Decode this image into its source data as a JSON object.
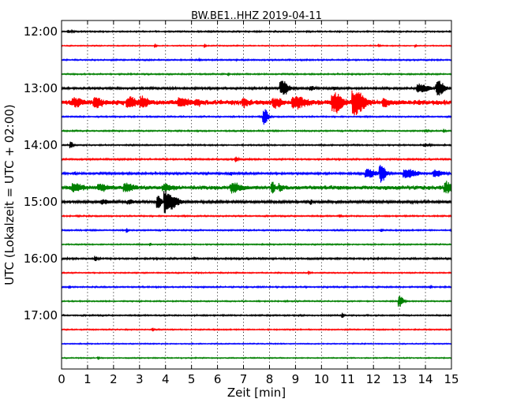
{
  "chart_data": {
    "type": "line",
    "title": "BW.BE1..HHZ 2019-04-11",
    "xlabel": "Zeit  [min]",
    "ylabel": "UTC (Lokalzeit = UTC + 02:00)",
    "xlim": [
      0,
      15
    ],
    "x_ticks": [
      "0",
      "1",
      "2",
      "3",
      "4",
      "5",
      "6",
      "7",
      "8",
      "9",
      "10",
      "11",
      "12",
      "13",
      "14",
      "15"
    ],
    "y_ticks": [
      "12:00",
      "13:00",
      "14:00",
      "15:00",
      "16:00",
      "17:00"
    ],
    "grid": "vertical dotted",
    "series_colors": [
      "#000000",
      "#ff0000",
      "#0000ff",
      "#008000"
    ],
    "traces": [
      {
        "start": "12:00",
        "color": "#000000",
        "noise": 0.8,
        "events": [
          [
            0.3,
            1.2,
            0.15
          ]
        ]
      },
      {
        "start": "12:15",
        "color": "#ff0000",
        "noise": 0.6,
        "events": [
          [
            3.6,
            2.5,
            0.05
          ],
          [
            5.5,
            2.5,
            0.05
          ],
          [
            12.2,
            2,
            0.05
          ],
          [
            13.6,
            2,
            0.05
          ]
        ]
      },
      {
        "start": "12:30",
        "color": "#0000ff",
        "noise": 0.8,
        "events": [
          [
            5.3,
            1.5,
            0.05
          ]
        ]
      },
      {
        "start": "12:45",
        "color": "#008000",
        "noise": 0.8,
        "events": [
          [
            6.4,
            1.3,
            0.05
          ]
        ]
      },
      {
        "start": "13:00",
        "color": "#000000",
        "noise": 1.2,
        "events": [
          [
            8.5,
            9,
            0.25
          ],
          [
            9.6,
            2.5,
            0.15
          ],
          [
            10.5,
            2,
            0.1
          ],
          [
            13.8,
            5,
            0.35
          ],
          [
            14.5,
            9,
            0.25
          ]
        ]
      },
      {
        "start": "13:15",
        "color": "#ff0000",
        "noise": 3,
        "events": [
          [
            0.5,
            4,
            0.3
          ],
          [
            1.3,
            6,
            0.25
          ],
          [
            2.6,
            5,
            0.3
          ],
          [
            3.1,
            6,
            0.25
          ],
          [
            4.6,
            4,
            0.3
          ],
          [
            5.2,
            3,
            0.2
          ],
          [
            7.0,
            4,
            0.2
          ],
          [
            8.2,
            5,
            0.25
          ],
          [
            9.0,
            6,
            0.4
          ],
          [
            10.5,
            12,
            0.3
          ],
          [
            11.3,
            14,
            0.35
          ],
          [
            12.4,
            4,
            0.2
          ]
        ]
      },
      {
        "start": "13:30",
        "color": "#0000ff",
        "noise": 0.8,
        "events": [
          [
            7.8,
            10,
            0.15
          ]
        ]
      },
      {
        "start": "13:45",
        "color": "#008000",
        "noise": 0.8,
        "events": [
          [
            14.0,
            1.5,
            0.1
          ],
          [
            14.7,
            2.5,
            0.05
          ]
        ]
      },
      {
        "start": "14:00",
        "color": "#000000",
        "noise": 0.8,
        "events": [
          [
            0.35,
            4,
            0.1
          ],
          [
            14.0,
            1.5,
            0.2
          ]
        ]
      },
      {
        "start": "14:15",
        "color": "#ff0000",
        "noise": 0.9,
        "events": [
          [
            6.7,
            3,
            0.1
          ]
        ]
      },
      {
        "start": "14:30",
        "color": "#0000ff",
        "noise": 1.2,
        "events": [
          [
            0.5,
            2,
            0.05
          ],
          [
            6.5,
            1.8,
            0.1
          ],
          [
            11.8,
            5,
            0.3
          ],
          [
            12.3,
            10,
            0.2
          ],
          [
            13.3,
            5,
            0.4
          ],
          [
            14.4,
            4,
            0.3
          ]
        ]
      },
      {
        "start": "14:45",
        "color": "#008000",
        "noise": 2.5,
        "events": [
          [
            0.5,
            4,
            0.3
          ],
          [
            1.5,
            3,
            0.3
          ],
          [
            2.5,
            4,
            0.3
          ],
          [
            4.0,
            3,
            0.3
          ],
          [
            6.6,
            5,
            0.3
          ],
          [
            8.1,
            7,
            0.1
          ],
          [
            8.4,
            4,
            0.1
          ],
          [
            14.8,
            6,
            0.25
          ]
        ]
      },
      {
        "start": "15:00",
        "color": "#000000",
        "noise": 1.5,
        "events": [
          [
            1.6,
            2.5,
            0.25
          ],
          [
            2.6,
            2,
            0.2
          ],
          [
            3.7,
            8,
            0.15
          ],
          [
            4.0,
            14,
            0.2
          ],
          [
            4.3,
            6,
            0.25
          ],
          [
            9.6,
            3,
            0.05
          ]
        ]
      },
      {
        "start": "15:15",
        "color": "#ff0000",
        "noise": 0.8,
        "events": [
          [
            10.7,
            2.5,
            0.05
          ]
        ]
      },
      {
        "start": "15:30",
        "color": "#0000ff",
        "noise": 0.8,
        "events": [
          [
            2.5,
            3,
            0.05
          ],
          [
            12.3,
            2,
            0.05
          ]
        ]
      },
      {
        "start": "15:45",
        "color": "#008000",
        "noise": 0.7,
        "events": [
          [
            3.4,
            1.5,
            0.05
          ]
        ]
      },
      {
        "start": "16:00",
        "color": "#000000",
        "noise": 1.0,
        "events": [
          [
            1.3,
            3,
            0.08
          ],
          [
            5.1,
            1.5,
            0.05
          ]
        ]
      },
      {
        "start": "16:15",
        "color": "#ff0000",
        "noise": 0.7,
        "events": [
          [
            9.5,
            2,
            0.05
          ]
        ]
      },
      {
        "start": "16:30",
        "color": "#0000ff",
        "noise": 0.8,
        "events": [
          [
            0.3,
            2,
            0.05
          ],
          [
            14.2,
            2,
            0.05
          ]
        ]
      },
      {
        "start": "16:45",
        "color": "#008000",
        "noise": 0.7,
        "events": [
          [
            13.0,
            7,
            0.15
          ]
        ]
      },
      {
        "start": "17:00",
        "color": "#000000",
        "noise": 0.8,
        "events": [
          [
            10.8,
            4,
            0.05
          ]
        ]
      },
      {
        "start": "17:15",
        "color": "#ff0000",
        "noise": 0.7,
        "events": [
          [
            3.5,
            1.5,
            0.05
          ]
        ]
      },
      {
        "start": "17:30",
        "color": "#0000ff",
        "noise": 0.6,
        "events": []
      },
      {
        "start": "17:45",
        "color": "#008000",
        "noise": 0.6,
        "events": [
          [
            1.4,
            2,
            0.05
          ]
        ]
      }
    ]
  }
}
